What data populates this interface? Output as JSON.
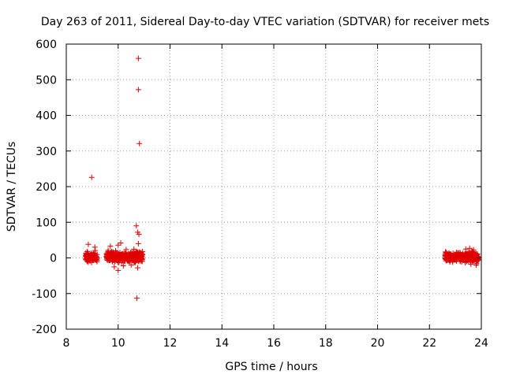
{
  "chart_data": {
    "type": "scatter",
    "title": "Day 263 of 2011, Sidereal Day-to-day VTEC variation (SDTVAR) for receiver mets",
    "xlabel": "GPS time / hours",
    "ylabel": "SDTVAR / TECUs",
    "xlim": [
      8,
      24
    ],
    "ylim": [
      -200,
      600
    ],
    "xticks": [
      "8",
      "10",
      "12",
      "14",
      "16",
      "18",
      "20",
      "22",
      "24"
    ],
    "yticks": [
      "600",
      "500",
      "400",
      "300",
      "200",
      "100",
      "0",
      "-100",
      "-200"
    ],
    "grid": true,
    "marker": "+",
    "color": "#e00000",
    "outliers": [
      {
        "x": 8.98,
        "y": 226
      },
      {
        "x": 10.78,
        "y": 560
      },
      {
        "x": 10.78,
        "y": 472
      },
      {
        "x": 10.82,
        "y": 321
      },
      {
        "x": 10.7,
        "y": 90
      },
      {
        "x": 10.75,
        "y": 72
      },
      {
        "x": 10.8,
        "y": 66
      },
      {
        "x": 10.78,
        "y": 40
      },
      {
        "x": 10.1,
        "y": 42
      },
      {
        "x": 10.0,
        "y": 36
      },
      {
        "x": 9.7,
        "y": 33
      },
      {
        "x": 8.85,
        "y": 38
      },
      {
        "x": 9.1,
        "y": 30
      },
      {
        "x": 10.72,
        "y": -113
      },
      {
        "x": 10.0,
        "y": -35
      },
      {
        "x": 10.2,
        "y": -22
      },
      {
        "x": 9.85,
        "y": -25
      },
      {
        "x": 10.5,
        "y": -20
      },
      {
        "x": 10.75,
        "y": -28
      },
      {
        "x": 23.55,
        "y": 27
      },
      {
        "x": 23.7,
        "y": 23
      },
      {
        "x": 23.4,
        "y": 25
      },
      {
        "x": 23.8,
        "y": -20
      },
      {
        "x": 23.6,
        "y": -18
      }
    ],
    "clusters": [
      {
        "x_start": 8.75,
        "x_end": 9.2,
        "y_center": 2,
        "spread": 12,
        "count": 110
      },
      {
        "x_start": 9.55,
        "x_end": 10.95,
        "y_center": 4,
        "spread": 12,
        "count": 420
      },
      {
        "x_start": 22.6,
        "x_end": 23.9,
        "y_center": 2,
        "spread": 10,
        "count": 320
      }
    ]
  }
}
